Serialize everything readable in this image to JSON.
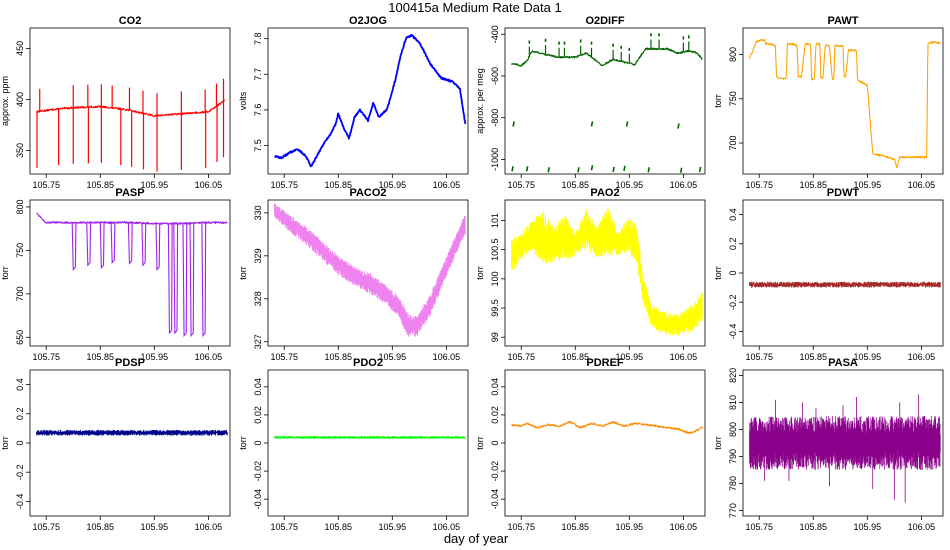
{
  "title": "100415a   Medium Rate Data 1",
  "xlabel": "day of year",
  "x_tick_labels": [
    "105.75",
    "105.85",
    "105.95",
    "106.05"
  ],
  "chart_data": [
    {
      "type": "line",
      "title": "CO2",
      "ylabel": "approx. ppm",
      "color": "#ff0000",
      "xlim": [
        105.72,
        106.09
      ],
      "ylim": [
        327,
        470
      ],
      "yticks": [
        350,
        400,
        450
      ],
      "x": [
        105.732,
        105.76,
        105.8,
        105.85,
        105.9,
        105.95,
        106.0,
        106.05,
        106.08
      ],
      "y": [
        388,
        390,
        392,
        393,
        390,
        384,
        386,
        388,
        399
      ],
      "spikes_up": [
        105.738,
        105.8,
        105.827,
        105.852,
        105.872,
        105.904,
        105.929,
        105.955,
        106.0,
        106.044,
        106.065,
        106.078
      ],
      "spikes_down": [
        105.733,
        105.773,
        105.8,
        105.828,
        105.852,
        105.888,
        105.908,
        105.93,
        105.955,
        106.0,
        106.045,
        106.066,
        106.078
      ]
    },
    {
      "type": "line",
      "title": "O2JOG",
      "ylabel": "volts",
      "color": "#0000ff",
      "xlim": [
        105.72,
        106.09
      ],
      "ylim": [
        7.42,
        7.83
      ],
      "yticks": [
        7.5,
        7.6,
        7.7,
        7.8
      ],
      "x": [
        105.732,
        105.745,
        105.76,
        105.775,
        105.79,
        105.8,
        105.81,
        105.825,
        105.835,
        105.845,
        105.85,
        105.86,
        105.87,
        105.88,
        105.89,
        105.905,
        105.915,
        105.925,
        105.94,
        105.955,
        105.965,
        105.975,
        105.985,
        106.0,
        106.02,
        106.04,
        106.06,
        106.075,
        106.085
      ],
      "y": [
        7.47,
        7.465,
        7.48,
        7.49,
        7.47,
        7.44,
        7.47,
        7.51,
        7.53,
        7.56,
        7.59,
        7.55,
        7.52,
        7.58,
        7.6,
        7.57,
        7.62,
        7.58,
        7.6,
        7.68,
        7.75,
        7.8,
        7.81,
        7.79,
        7.73,
        7.69,
        7.68,
        7.66,
        7.56
      ]
    },
    {
      "type": "line",
      "title": "O2DIFF",
      "ylabel": "approx. per meg",
      "color": "#006400",
      "xlim": [
        105.72,
        106.09
      ],
      "ylim": [
        -1070,
        -370
      ],
      "yticks": [
        -1000,
        -800,
        -600,
        -400
      ],
      "x": [
        105.732,
        105.75,
        105.76,
        105.77,
        105.8,
        105.82,
        105.85,
        105.87,
        105.9,
        105.92,
        105.95,
        105.96,
        105.98,
        106.0,
        106.02,
        106.04,
        106.06,
        106.075,
        106.085
      ],
      "y": [
        -540,
        -550,
        -530,
        -480,
        -500,
        -510,
        -510,
        -490,
        -550,
        -520,
        -540,
        -545,
        -470,
        -470,
        -470,
        -490,
        -480,
        -490,
        -520
      ],
      "spikes": [
        105.765,
        105.795,
        105.82,
        105.83,
        105.86,
        105.88,
        105.92,
        105.935,
        105.95,
        105.99,
        106.005,
        106.05,
        106.06
      ],
      "outlier_points": [
        [
          105.733,
          -1045
        ],
        [
          105.76,
          -1045
        ],
        [
          105.8,
          -1050
        ],
        [
          105.855,
          -1050
        ],
        [
          105.88,
          -1040
        ],
        [
          105.92,
          -1048
        ],
        [
          105.94,
          -1043
        ],
        [
          105.985,
          -1050
        ],
        [
          106.045,
          -1052
        ],
        [
          106.08,
          -1048
        ],
        [
          105.735,
          -830
        ],
        [
          105.88,
          -830
        ],
        [
          105.945,
          -830
        ],
        [
          106.04,
          -840
        ]
      ]
    },
    {
      "type": "line",
      "title": "PAWT",
      "ylabel": "torr",
      "color": "#ffa500",
      "xlim": [
        105.72,
        106.09
      ],
      "ylim": [
        665,
        830
      ],
      "yticks": [
        700,
        750,
        800
      ],
      "x": [
        105.732,
        105.745,
        105.76,
        105.762,
        105.77,
        105.78,
        105.782,
        105.79,
        105.8,
        105.802,
        105.81,
        105.82,
        105.822,
        105.828,
        105.835,
        105.845,
        105.847,
        105.852,
        105.855,
        105.862,
        105.864,
        105.868,
        105.872,
        105.88,
        105.885,
        105.888,
        105.89,
        105.895,
        105.905,
        105.907,
        105.91,
        105.915,
        105.93,
        105.932,
        105.935,
        105.95,
        105.96,
        106.0,
        106.005,
        106.01,
        106.06,
        106.062,
        106.07,
        106.085
      ],
      "y": [
        795,
        815,
        817,
        812,
        812,
        810,
        775,
        773,
        773,
        812,
        812,
        810,
        775,
        775,
        812,
        812,
        772,
        772,
        812,
        812,
        774,
        774,
        810,
        810,
        772,
        772,
        810,
        810,
        810,
        775,
        775,
        805,
        805,
        770,
        770,
        765,
        688,
        682,
        672,
        684,
        684,
        812,
        814,
        813
      ]
    },
    {
      "type": "line",
      "title": "PASP",
      "ylabel": "torr",
      "color": "#a020f0",
      "xlim": [
        105.72,
        106.09
      ],
      "ylim": [
        640,
        808
      ],
      "yticks": [
        650,
        700,
        750,
        800
      ],
      "x": [
        105.732,
        105.75,
        105.8,
        105.85,
        105.9,
        105.95,
        106.0,
        106.05,
        106.085
      ],
      "y": [
        793,
        782,
        782,
        782,
        782,
        781,
        781,
        782,
        782
      ],
      "dips": [
        [
          105.8,
          728
        ],
        [
          105.827,
          733
        ],
        [
          105.852,
          730
        ],
        [
          105.872,
          736
        ],
        [
          105.904,
          735
        ],
        [
          105.929,
          733
        ],
        [
          105.955,
          728
        ],
        [
          105.978,
          655
        ],
        [
          105.988,
          655
        ],
        [
          106.005,
          652
        ],
        [
          106.018,
          652
        ],
        [
          106.04,
          652
        ]
      ]
    },
    {
      "type": "area",
      "title": "PACO2",
      "ylabel": "torr",
      "color": "#ee82ee",
      "xlim": [
        105.72,
        106.09
      ],
      "ylim": [
        326.9,
        330.3
      ],
      "yticks": [
        327.0,
        328.0,
        329.0,
        330.0
      ],
      "x": [
        105.732,
        105.76,
        105.79,
        105.82,
        105.85,
        105.88,
        105.91,
        105.94,
        105.96,
        105.98,
        105.995,
        106.02,
        106.05,
        106.085
      ],
      "ymax": [
        330.25,
        329.95,
        329.7,
        329.35,
        329.0,
        328.75,
        328.6,
        328.3,
        328.1,
        327.65,
        327.6,
        328.1,
        329.0,
        330.0
      ],
      "ymin": [
        329.9,
        329.55,
        329.25,
        328.9,
        328.55,
        328.3,
        328.1,
        327.85,
        327.6,
        327.1,
        327.1,
        327.6,
        328.5,
        329.5
      ]
    },
    {
      "type": "area",
      "title": "PAO2",
      "ylabel": "torr",
      "color": "#ffff00",
      "xlim": [
        105.72,
        106.09
      ],
      "ylim": [
        98.85,
        101.35
      ],
      "yticks": [
        99.0,
        99.5,
        100.0,
        100.5,
        101.0
      ],
      "x": [
        105.732,
        105.75,
        105.77,
        105.79,
        105.81,
        105.83,
        105.85,
        105.87,
        105.89,
        105.91,
        105.93,
        105.95,
        105.965,
        105.975,
        105.99,
        106.01,
        106.04,
        106.07,
        106.085
      ],
      "ymax": [
        100.7,
        100.8,
        101.0,
        101.2,
        100.9,
        101.1,
        100.8,
        101.2,
        100.9,
        101.25,
        100.8,
        101.1,
        100.9,
        100.1,
        99.6,
        99.45,
        99.4,
        99.6,
        99.8
      ],
      "ymin": [
        100.1,
        100.3,
        100.5,
        100.2,
        100.3,
        100.3,
        100.4,
        100.5,
        100.35,
        100.4,
        100.4,
        100.45,
        100.2,
        99.6,
        99.2,
        99.05,
        99.0,
        99.1,
        99.3
      ]
    },
    {
      "type": "line",
      "title": "PDWT",
      "ylabel": "torr",
      "color": "#a52a2a",
      "xlim": [
        105.72,
        106.09
      ],
      "ylim": [
        -0.5,
        0.5
      ],
      "yticks": [
        -0.4,
        -0.2,
        0.0,
        0.2,
        0.4
      ],
      "x": [
        105.732,
        106.085
      ],
      "y": [
        -0.08,
        -0.08
      ],
      "noise_band": [
        -0.1,
        -0.06
      ]
    },
    {
      "type": "line",
      "title": "PDSP",
      "ylabel": "torr",
      "color": "#00008b",
      "xlim": [
        105.72,
        106.09
      ],
      "ylim": [
        -0.5,
        0.5
      ],
      "yticks": [
        -0.4,
        -0.2,
        0.0,
        0.2,
        0.4
      ],
      "x": [
        105.732,
        106.085
      ],
      "y": [
        0.07,
        0.07
      ],
      "noise_band": [
        0.05,
        0.09
      ]
    },
    {
      "type": "line",
      "title": "PDO2",
      "ylabel": "torr",
      "color": "#00ff00",
      "xlim": [
        105.72,
        106.09
      ],
      "ylim": [
        -0.052,
        0.052
      ],
      "yticks": [
        -0.04,
        -0.02,
        0.0,
        0.02,
        0.04
      ],
      "x": [
        105.732,
        106.085
      ],
      "y": [
        0.004,
        0.004
      ],
      "noise_band": [
        0.003,
        0.005
      ]
    },
    {
      "type": "line",
      "title": "PDREF",
      "ylabel": "torr",
      "color": "#ff8c00",
      "xlim": [
        105.72,
        106.09
      ],
      "ylim": [
        -0.052,
        0.052
      ],
      "yticks": [
        -0.04,
        -0.02,
        0.0,
        0.02,
        0.04
      ],
      "x": [
        105.732,
        105.75,
        105.76,
        105.78,
        105.8,
        105.82,
        105.84,
        105.86,
        105.88,
        105.9,
        105.92,
        105.94,
        105.96,
        105.98,
        106.0,
        106.02,
        106.04,
        106.06,
        106.07,
        106.085
      ],
      "y": [
        0.013,
        0.012,
        0.014,
        0.011,
        0.013,
        0.012,
        0.015,
        0.011,
        0.014,
        0.012,
        0.015,
        0.012,
        0.014,
        0.013,
        0.012,
        0.011,
        0.01,
        0.007,
        0.008,
        0.011
      ]
    },
    {
      "type": "area",
      "title": "PASA",
      "ylabel": "torr",
      "color": "#8b008b",
      "xlim": [
        105.72,
        106.09
      ],
      "ylim": [
        768,
        822
      ],
      "yticks": [
        770,
        780,
        790,
        800,
        810,
        820
      ],
      "x": [
        105.732,
        106.085
      ],
      "ymax": [
        805,
        805
      ],
      "ymin": [
        785,
        785
      ],
      "spikes": [
        [
          105.76,
          781
        ],
        [
          105.78,
          811
        ],
        [
          105.805,
          781
        ],
        [
          105.83,
          810
        ],
        [
          105.855,
          808
        ],
        [
          105.88,
          779
        ],
        [
          105.905,
          809
        ],
        [
          105.93,
          812
        ],
        [
          105.96,
          778
        ],
        [
          106.0,
          774
        ],
        [
          106.01,
          810
        ],
        [
          106.02,
          773
        ],
        [
          106.045,
          813
        ]
      ]
    }
  ]
}
